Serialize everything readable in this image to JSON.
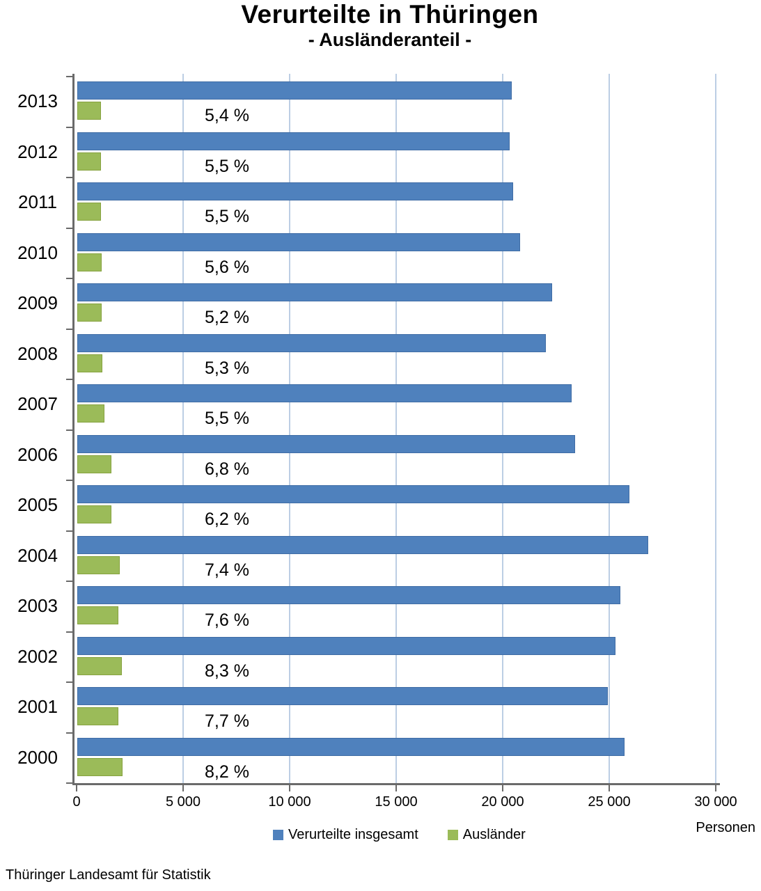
{
  "title": "Verurteilte in Thüringen",
  "subtitle": "- Ausländeranteil -",
  "source": "Thüringer Landesamt für Statistik",
  "axis_unit": "Personen",
  "colors": {
    "total_blue": "#4f81bd",
    "foreign_green": "#9bbb59",
    "gridline": "#bccee4",
    "axis_gray": "#6a6a6a"
  },
  "legend": [
    {
      "label": "Verurteilte insgesamt",
      "color": "#4f81bd"
    },
    {
      "label": "Ausländer",
      "color": "#9bbb59"
    }
  ],
  "chart_data": {
    "type": "bar",
    "orientation": "horizontal",
    "title": "Verurteilte in Thüringen",
    "subtitle": "- Ausländeranteil -",
    "xlabel": "Personen",
    "ylabel": "",
    "xlim": [
      0,
      30000
    ],
    "grid": true,
    "legend_position": "bottom",
    "categories": [
      "2013",
      "2012",
      "2011",
      "2010",
      "2009",
      "2008",
      "2007",
      "2006",
      "2005",
      "2004",
      "2003",
      "2002",
      "2001",
      "2000"
    ],
    "series": [
      {
        "name": "Verurteilte insgesamt",
        "values": [
          20400,
          20300,
          20450,
          20800,
          22300,
          22000,
          23200,
          23350,
          25900,
          26800,
          25500,
          25250,
          24900,
          25700
        ]
      },
      {
        "name": "Ausländer",
        "values": [
          1100,
          1120,
          1120,
          1160,
          1160,
          1170,
          1280,
          1590,
          1610,
          1980,
          1940,
          2100,
          1920,
          2110
        ]
      }
    ],
    "labels": [
      "5,4 %",
      "5,5 %",
      "5,5 %",
      "5,6 %",
      "5,2 %",
      "5,3 %",
      "5,5 %",
      "6,8 %",
      "6,2 %",
      "7,4 %",
      "7,6 %",
      "8,3 %",
      "7,7 %",
      "8,2 %"
    ],
    "xticks": [
      0,
      5000,
      10000,
      15000,
      20000,
      25000,
      30000
    ],
    "xtick_labels": [
      "0",
      "5 000",
      "10 000",
      "15 000",
      "20 000",
      "25 000",
      "30 000"
    ]
  }
}
